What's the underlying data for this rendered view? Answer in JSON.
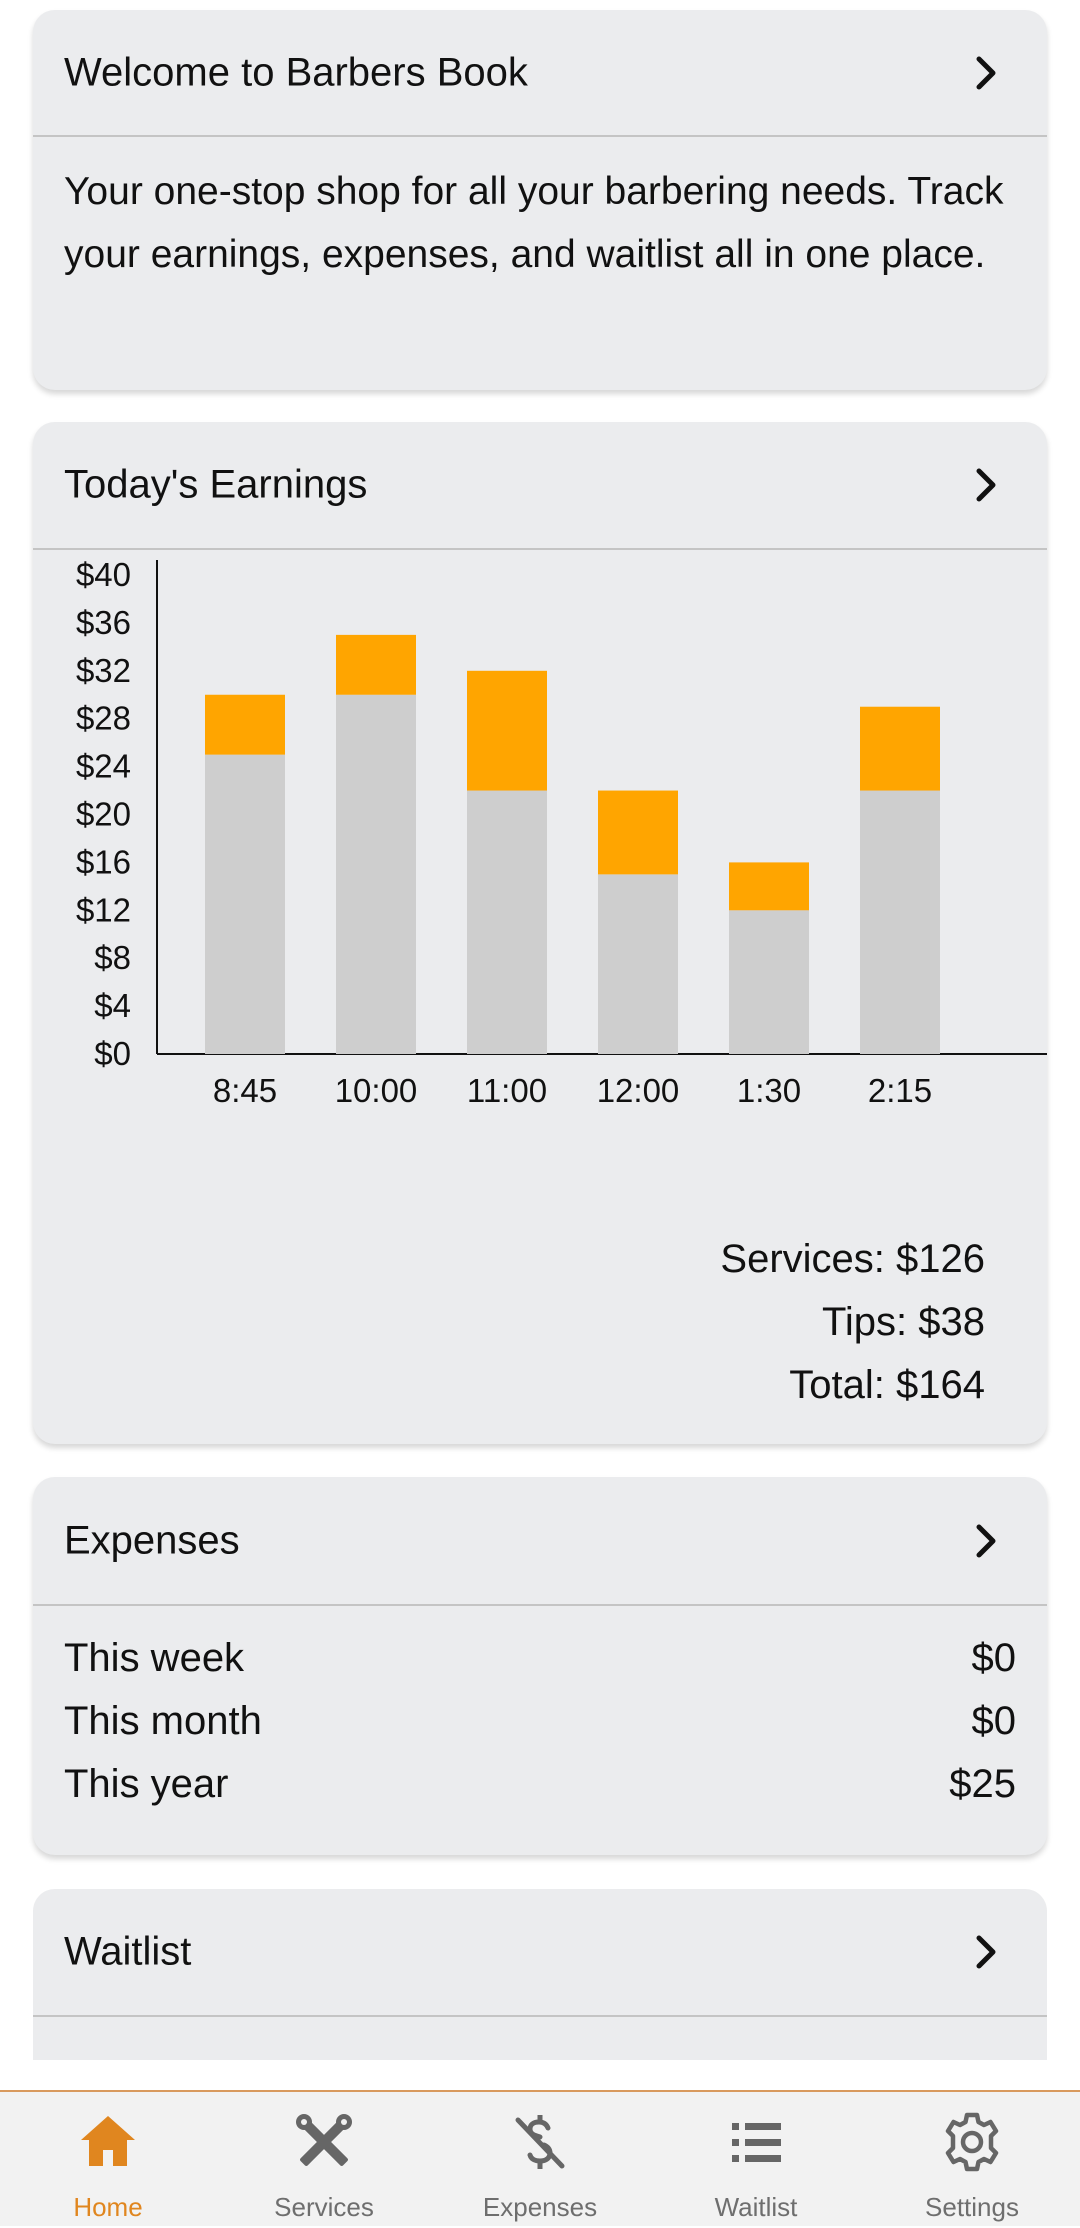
{
  "welcome": {
    "title": "Welcome to Barbers Book",
    "body": "Your one-stop shop for all your barbering needs. Track your earnings, expenses, and waitlist all in one place."
  },
  "earnings": {
    "title": "Today's Earnings",
    "services_text": "Services: $126",
    "tips_text": "Tips: $38",
    "total_text": "Total: $164"
  },
  "chart_data": {
    "type": "bar",
    "stacked": true,
    "categories": [
      "8:45",
      "10:00",
      "11:00",
      "12:00",
      "1:30",
      "2:15"
    ],
    "series": [
      {
        "name": "Services",
        "color": "#cecece",
        "values": [
          25,
          30,
          22,
          15,
          12,
          22
        ]
      },
      {
        "name": "Tips",
        "color": "#ffa500",
        "values": [
          5,
          5,
          10,
          7,
          4,
          7
        ]
      }
    ],
    "ylim": [
      0,
      40
    ],
    "yticks": [
      0,
      4,
      8,
      12,
      16,
      20,
      24,
      28,
      32,
      36,
      40
    ],
    "ytick_labels": [
      "$0",
      "$4",
      "$8",
      "$12",
      "$16",
      "$20",
      "$24",
      "$28",
      "$32",
      "$36",
      "$40"
    ],
    "grid": false,
    "legend": "none"
  },
  "expenses": {
    "title": "Expenses",
    "rows": [
      {
        "label": "This week",
        "value": "$0"
      },
      {
        "label": "This month",
        "value": "$0"
      },
      {
        "label": "This year",
        "value": "$25"
      }
    ]
  },
  "waitlist": {
    "title": "Waitlist"
  },
  "nav": {
    "items": [
      {
        "label": "Home",
        "icon": "home-icon",
        "active": true
      },
      {
        "label": "Services",
        "icon": "scissors-comb-icon",
        "active": false
      },
      {
        "label": "Expenses",
        "icon": "no-dollar-icon",
        "active": false
      },
      {
        "label": "Waitlist",
        "icon": "list-icon",
        "active": false
      },
      {
        "label": "Settings",
        "icon": "gear-icon",
        "active": false
      }
    ],
    "active_color": "#e0861f",
    "inactive_color": "#6e6e6e"
  }
}
